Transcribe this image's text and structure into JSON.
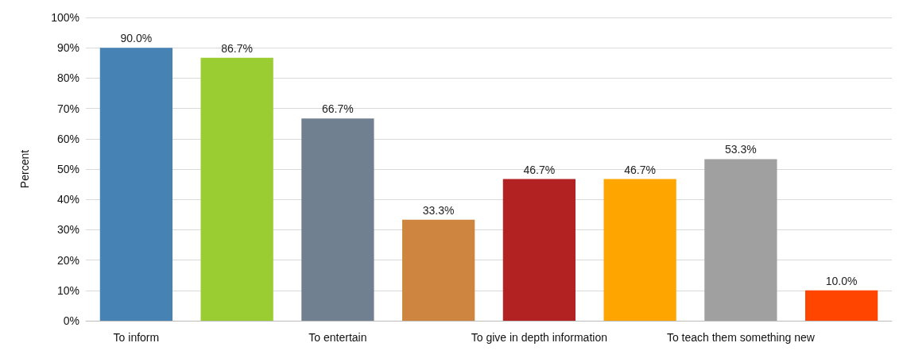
{
  "chart_data": {
    "type": "bar",
    "ylabel": "Percent",
    "categories": [
      "To inform",
      null,
      "To entertain",
      null,
      "To give in depth information",
      null,
      "To teach them something new",
      null
    ],
    "values": [
      90.0,
      86.7,
      66.7,
      33.3,
      46.7,
      46.7,
      53.3,
      10.0
    ],
    "colors": [
      "#4682b4",
      "#9acd32",
      "#708090",
      "#cd853f",
      "#b22222",
      "#ffa500",
      "#a0a0a0",
      "#ff4500"
    ],
    "value_labels": [
      "90.0%",
      "86.7%",
      "66.7%",
      "33.3%",
      "46.7%",
      "46.7%",
      "53.3%",
      "10.0%"
    ],
    "ylim": [
      0,
      100
    ],
    "yticks": [
      {
        "value": 0,
        "label": "0%"
      },
      {
        "value": 10,
        "label": "10%"
      },
      {
        "value": 20,
        "label": "20%"
      },
      {
        "value": 30,
        "label": "30%"
      },
      {
        "value": 40,
        "label": "40%"
      },
      {
        "value": 50,
        "label": "50%"
      },
      {
        "value": 60,
        "label": "60%"
      },
      {
        "value": 70,
        "label": "70%"
      },
      {
        "value": 80,
        "label": "80%"
      },
      {
        "value": 90,
        "label": "90%"
      },
      {
        "value": 100,
        "label": "100%"
      }
    ],
    "grid": "y"
  }
}
